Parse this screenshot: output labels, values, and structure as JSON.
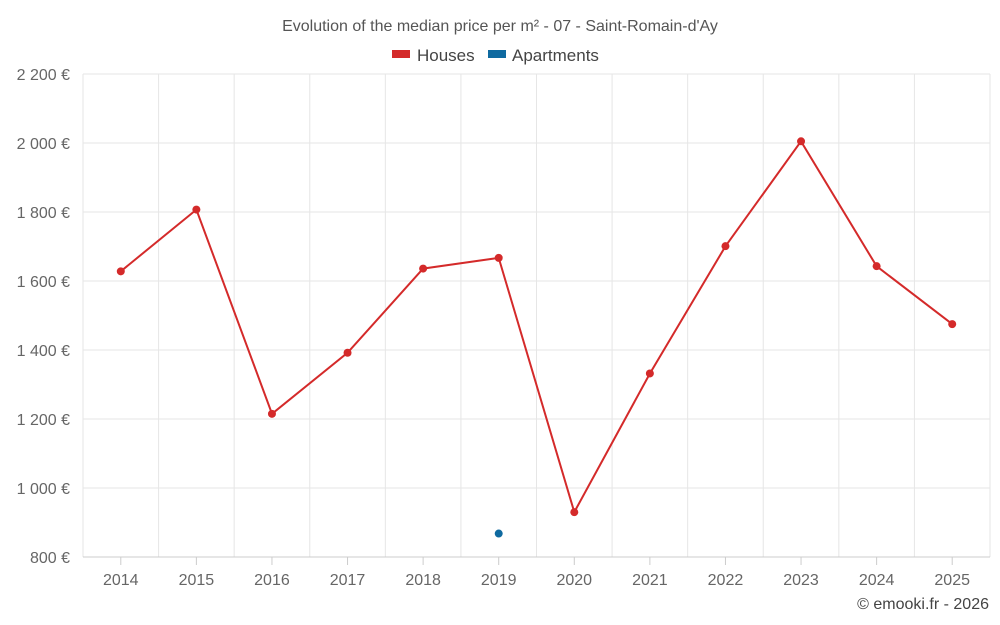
{
  "chart_data": {
    "type": "line",
    "title": "Evolution of the median price per m² - 07 - Saint-Romain-d'Ay",
    "categories": [
      "2014",
      "2015",
      "2016",
      "2017",
      "2018",
      "2019",
      "2020",
      "2021",
      "2022",
      "2023",
      "2024",
      "2025"
    ],
    "series": [
      {
        "name": "Houses",
        "color": "#d42a2a",
        "values": [
          1628,
          1807,
          1215,
          1392,
          1636,
          1667,
          930,
          1332,
          1701,
          2005,
          1643,
          1475
        ]
      },
      {
        "name": "Apartments",
        "color": "#0f6aa0",
        "values": [
          null,
          null,
          null,
          null,
          null,
          868,
          null,
          null,
          null,
          null,
          null,
          null
        ]
      }
    ],
    "ylim": [
      800,
      2200
    ],
    "yticks": [
      800,
      1000,
      1200,
      1400,
      1600,
      1800,
      2000,
      2200
    ],
    "ytick_labels": [
      "800 €",
      "1 000 €",
      "1 200 €",
      "1 400 €",
      "1 600 €",
      "1 800 €",
      "2 000 €",
      "2 200 €"
    ],
    "xlabel": "",
    "ylabel": "",
    "grid": true,
    "legend_position": "top-center"
  },
  "credit": "© emooki.fr - 2026"
}
